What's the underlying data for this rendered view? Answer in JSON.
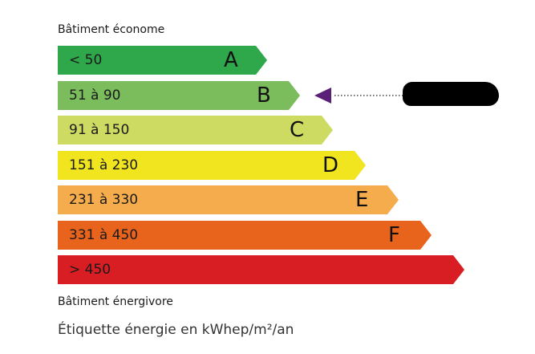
{
  "top_caption": "Bâtiment économe",
  "bottom_caption": "Bâtiment énergivore",
  "unit_caption": "Étiquette énergie en kWhep/m²/an",
  "classes": [
    {
      "letter": "A",
      "range": "< 50",
      "color": "#2ea84a"
    },
    {
      "letter": "B",
      "range": "51 à 90",
      "color": "#7bbd5d"
    },
    {
      "letter": "C",
      "range": "91 à 150",
      "color": "#cddb62"
    },
    {
      "letter": "D",
      "range": "151 à 230",
      "color": "#f1e51f"
    },
    {
      "letter": "E",
      "range": "231 à 330",
      "color": "#f5ac4d"
    },
    {
      "letter": "F",
      "range": "331 à 450",
      "color": "#e8641c"
    },
    {
      "letter": "",
      "range": "> 450",
      "color": "#d81e22"
    }
  ],
  "indicator": {
    "class": "B",
    "color": "#5a2077",
    "value_redacted": true
  }
}
